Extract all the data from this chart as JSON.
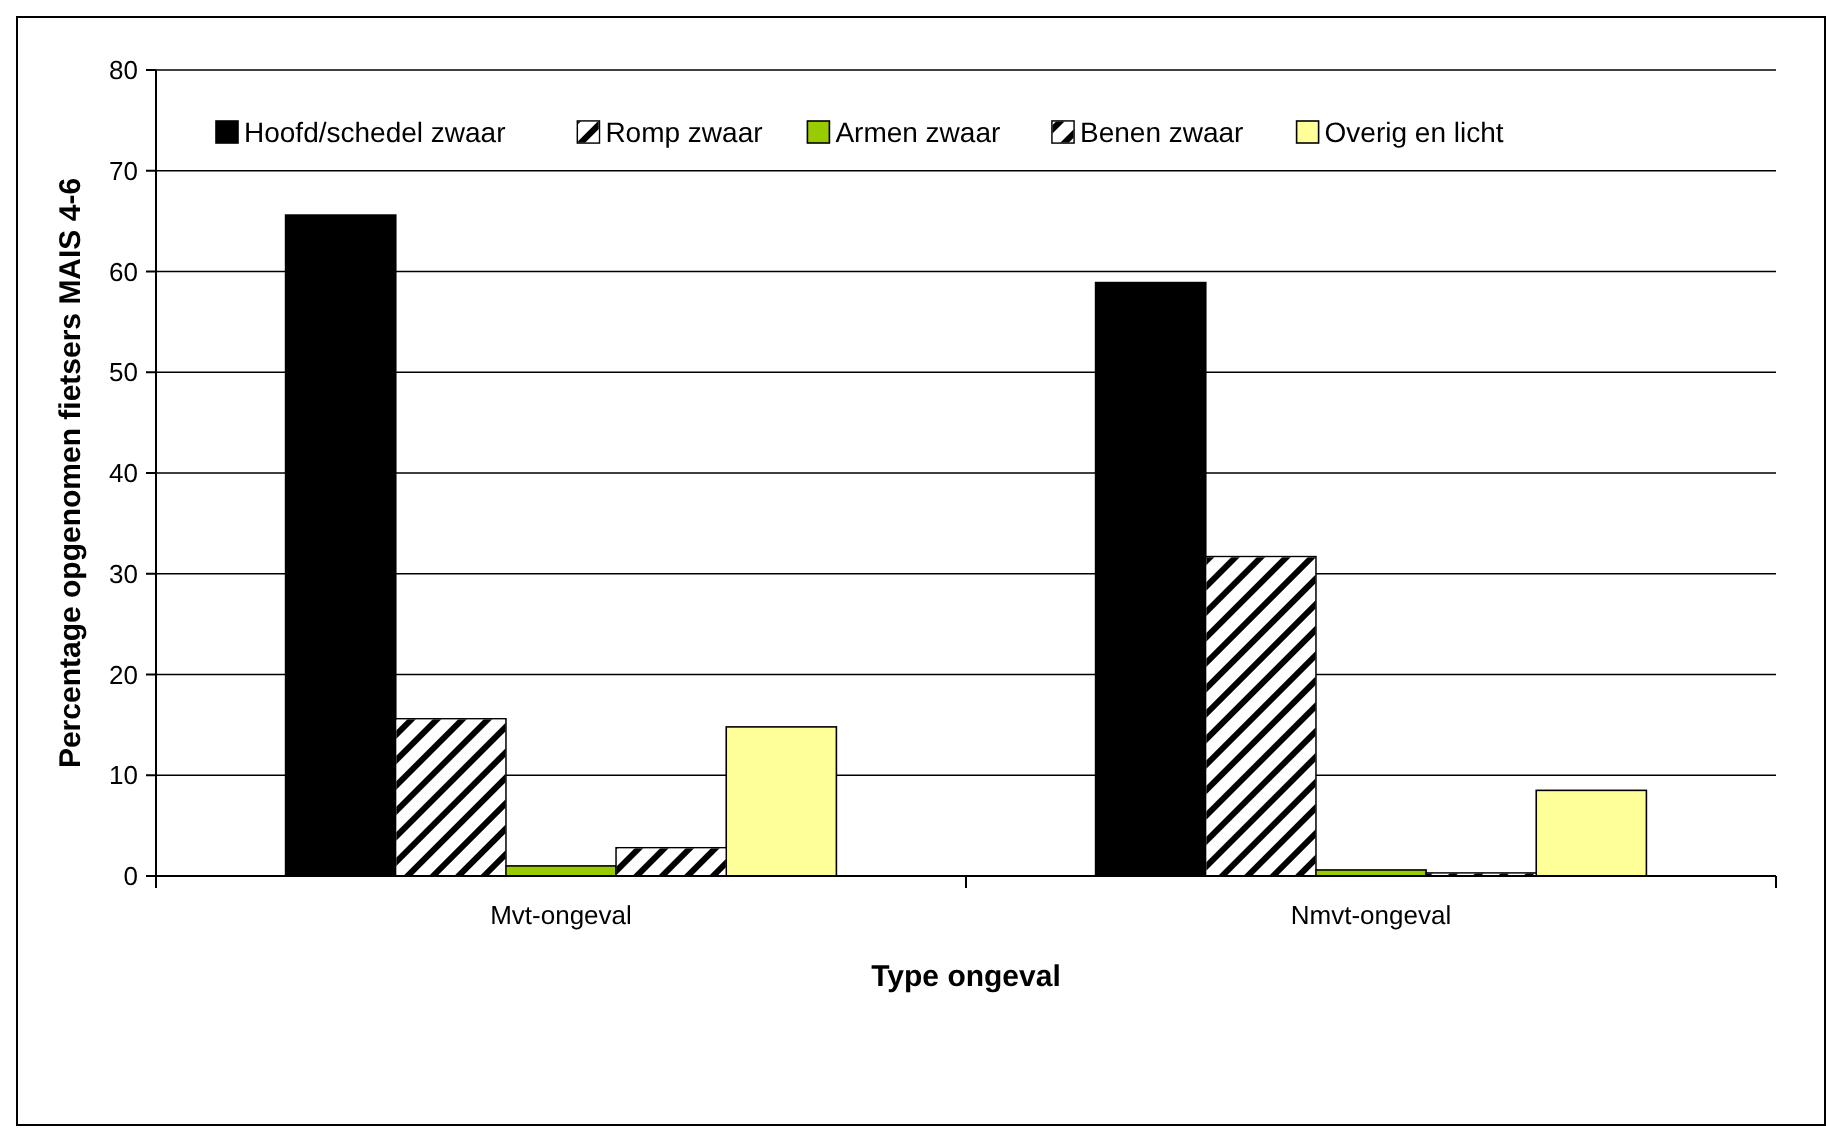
{
  "chart_data": {
    "type": "bar",
    "xlabel": "Type ongeval",
    "ylabel": "Percentage opgenomen fietsers MAIS 4-6",
    "categories": [
      "Mvt-ongeval",
      "Nmvt-ongeval"
    ],
    "series": [
      {
        "name": "Hoofd/schedel zwaar",
        "color": "#000000",
        "values": [
          65.6,
          58.9
        ]
      },
      {
        "name": "Romp zwaar",
        "color": "#ffffff",
        "values": [
          15.6,
          31.7
        ]
      },
      {
        "name": "Armen zwaar",
        "color": "#99cc00",
        "values": [
          1.0,
          0.6
        ]
      },
      {
        "name": "Benen zwaar",
        "color": "#ffffff",
        "values": [
          2.8,
          0.3
        ]
      },
      {
        "name": "Overig en licht",
        "color": "#ffff99",
        "values": [
          14.8,
          8.5
        ]
      }
    ],
    "ylim": [
      0,
      80
    ],
    "yticks": [
      0,
      10,
      20,
      30,
      40,
      50,
      60,
      70,
      80
    ],
    "grid": "y",
    "legend": "top"
  }
}
